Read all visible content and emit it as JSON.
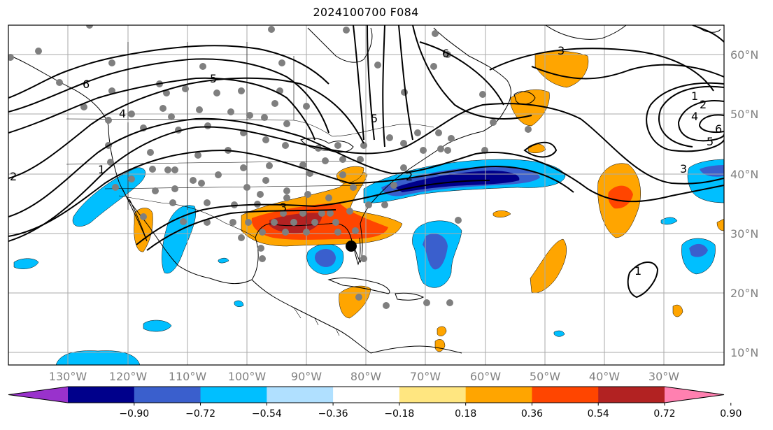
{
  "title": "2024100700 F084",
  "lat_labels": [
    "60°N",
    "50°N",
    "40°N",
    "30°N",
    "20°N",
    "10°N"
  ],
  "lon_labels": [
    "130°W",
    "120°W",
    "110°W",
    "100°W",
    "90°W",
    "80°W",
    "70°W",
    "60°W",
    "50°W",
    "40°W",
    "30°W"
  ],
  "contour_labels": [
    "6",
    "5",
    "4",
    "3",
    "2",
    "1",
    "6",
    "5",
    "3",
    "2",
    "1",
    "4",
    "6",
    "5",
    "3",
    "1",
    "2",
    "3",
    "1"
  ],
  "colorbar": {
    "colors": [
      "#9932CC",
      "#00008B",
      "#3A5FCD",
      "#00BFFF",
      "#B0E0FF",
      "#FFFFFF",
      "#FFE680",
      "#FFA500",
      "#FF4500",
      "#B22222",
      "#FF80B0"
    ],
    "ticks": [
      "−0.90",
      "−0.72",
      "−0.54",
      "−0.36",
      "−0.18",
      "0.18",
      "0.36",
      "0.54",
      "0.72",
      "0.90"
    ]
  }
}
